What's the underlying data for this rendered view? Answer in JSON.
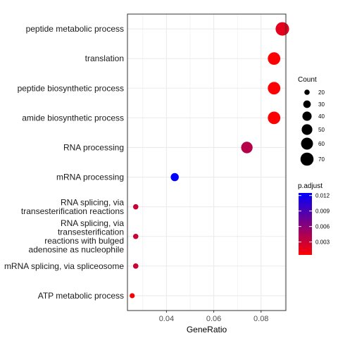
{
  "chart_data": {
    "type": "scatter",
    "title": "",
    "xlabel": "GeneRatio",
    "ylabel": "",
    "xlim": [
      0.0235,
      0.0905
    ],
    "xticks": [
      0.04,
      0.06,
      0.08
    ],
    "xtick_labels": [
      "0.04",
      "0.06",
      "0.08"
    ],
    "grid": true,
    "legend_position": "right",
    "colors": {
      "low": "#ff0000",
      "high": "#0000ff",
      "grid": "#ebebeb",
      "border": "#333333"
    },
    "points": [
      {
        "label": [
          "peptide metabolic process"
        ],
        "x": 0.089,
        "count": 74,
        "p_adjust": 0.0018
      },
      {
        "label": [
          "translation"
        ],
        "x": 0.0855,
        "count": 65,
        "p_adjust": 0.0006
      },
      {
        "label": [
          "peptide biosynthetic process"
        ],
        "x": 0.0855,
        "count": 65,
        "p_adjust": 0.0006
      },
      {
        "label": [
          "amide biosynthetic process"
        ],
        "x": 0.0855,
        "count": 65,
        "p_adjust": 0.0006
      },
      {
        "label": [
          "RNA processing"
        ],
        "x": 0.074,
        "count": 56,
        "p_adjust": 0.004
      },
      {
        "label": [
          "mRNA processing"
        ],
        "x": 0.0435,
        "count": 33,
        "p_adjust": 0.0125
      },
      {
        "label": [
          "RNA splicing, via",
          "transesterification reactions"
        ],
        "x": 0.027,
        "count": 20,
        "p_adjust": 0.003
      },
      {
        "label": [
          "RNA splicing, via",
          "transesterification",
          "reactions with bulged",
          "adenosine as nucleophile"
        ],
        "x": 0.027,
        "count": 20,
        "p_adjust": 0.003
      },
      {
        "label": [
          "mRNA splicing, via spliceosome"
        ],
        "x": 0.027,
        "count": 20,
        "p_adjust": 0.003
      },
      {
        "label": [
          "ATP metabolic process"
        ],
        "x": 0.0255,
        "count": 19,
        "p_adjust": 0.0008
      }
    ],
    "size_legend": {
      "title": "Count",
      "breaks": [
        20,
        30,
        40,
        50,
        60,
        70
      ]
    },
    "color_legend": {
      "title": "p.adjust",
      "range": [
        0.0005,
        0.0125
      ],
      "breaks": [
        0.003,
        0.006,
        0.009,
        0.012
      ],
      "labels": [
        "0.003",
        "0.006",
        "0.009",
        "0.012"
      ]
    }
  }
}
